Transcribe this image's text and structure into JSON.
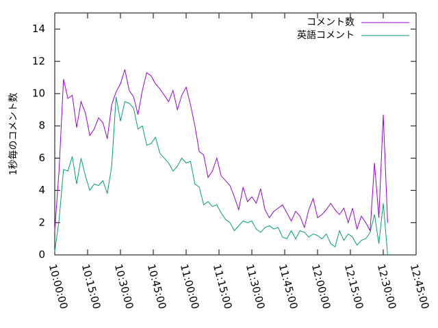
{
  "chart_data": {
    "type": "line",
    "y_label": "1秒毎のコメント数",
    "x": [
      "10:00:00",
      "10:02:00",
      "10:04:00",
      "10:06:00",
      "10:08:00",
      "10:10:00",
      "10:12:00",
      "10:14:00",
      "10:16:00",
      "10:18:00",
      "10:20:00",
      "10:22:00",
      "10:24:00",
      "10:26:00",
      "10:28:00",
      "10:30:00",
      "10:32:00",
      "10:34:00",
      "10:36:00",
      "10:38:00",
      "10:40:00",
      "10:42:00",
      "10:44:00",
      "10:46:00",
      "10:48:00",
      "10:50:00",
      "10:52:00",
      "10:54:00",
      "10:56:00",
      "10:58:00",
      "11:00:00",
      "11:02:00",
      "11:04:00",
      "11:06:00",
      "11:08:00",
      "11:10:00",
      "11:12:00",
      "11:14:00",
      "11:16:00",
      "11:18:00",
      "11:20:00",
      "11:22:00",
      "11:24:00",
      "11:26:00",
      "11:28:00",
      "11:30:00",
      "11:32:00",
      "11:34:00",
      "11:36:00",
      "11:38:00",
      "11:40:00",
      "11:42:00",
      "11:44:00",
      "11:46:00",
      "11:48:00",
      "11:50:00",
      "11:52:00",
      "11:54:00",
      "11:56:00",
      "11:58:00",
      "12:00:00",
      "12:02:00",
      "12:04:00",
      "12:06:00",
      "12:08:00",
      "12:10:00",
      "12:12:00",
      "12:14:00",
      "12:16:00",
      "12:18:00",
      "12:20:00",
      "12:22:00",
      "12:24:00",
      "12:26:00",
      "12:28:00",
      "12:30:00",
      "12:32:00"
    ],
    "series": [
      {
        "name": "コメント数",
        "color": "#9400d3",
        "values": [
          1.5,
          5.3,
          10.9,
          9.7,
          9.9,
          7.9,
          9.5,
          8.8,
          7.4,
          7.8,
          8.5,
          8.2,
          7.2,
          9.3,
          10.1,
          10.6,
          11.5,
          10.2,
          9.8,
          8.7,
          10.2,
          11.3,
          11.1,
          10.6,
          10.3,
          9.9,
          9.5,
          10.2,
          9.0,
          9.9,
          10.4,
          9.3,
          8.0,
          6.4,
          6.2,
          4.8,
          5.2,
          6.0,
          4.9,
          4.6,
          4.3,
          3.6,
          2.8,
          4.2,
          3.3,
          3.6,
          3.2,
          4.1,
          2.8,
          2.3,
          2.7,
          2.9,
          3.1,
          2.6,
          2.1,
          2.7,
          2.4,
          1.7,
          2.8,
          3.5,
          2.3,
          2.5,
          2.8,
          3.2,
          2.8,
          2.5,
          2.9,
          2.0,
          2.9,
          1.6,
          2.4,
          2.0,
          1.5,
          5.7,
          2.3,
          8.7,
          2.0
        ]
      },
      {
        "name": "英語コメント",
        "color": "#009e73",
        "values": [
          0.2,
          2.2,
          5.3,
          5.2,
          6.1,
          4.4,
          6.0,
          4.9,
          4.0,
          4.4,
          4.3,
          4.6,
          3.8,
          5.5,
          9.8,
          8.3,
          9.5,
          9.4,
          9.1,
          7.8,
          8.0,
          6.8,
          6.9,
          7.3,
          6.3,
          6.0,
          5.7,
          5.2,
          5.5,
          6.0,
          5.7,
          5.8,
          4.4,
          4.2,
          3.1,
          3.3,
          3.0,
          3.1,
          2.6,
          2.2,
          2.0,
          1.5,
          1.8,
          2.1,
          2.0,
          2.1,
          1.6,
          1.4,
          1.7,
          1.8,
          1.6,
          1.7,
          1.1,
          1.0,
          1.5,
          1.0,
          1.5,
          1.4,
          1.1,
          1.3,
          1.2,
          1.0,
          1.3,
          0.7,
          0.5,
          1.5,
          0.9,
          1.3,
          1.1,
          0.6,
          0.9,
          1.0,
          1.4,
          2.5,
          0.7,
          3.2,
          0.0
        ]
      }
    ],
    "xlim": [
      "10:00:00",
      "12:45:00"
    ],
    "xticks": [
      "10:00:00",
      "10:15:00",
      "10:30:00",
      "10:45:00",
      "11:00:00",
      "11:15:00",
      "11:30:00",
      "11:45:00",
      "12:00:00",
      "12:15:00",
      "12:30:00",
      "12:45:00"
    ],
    "ylim": [
      0,
      15
    ],
    "yticks": [
      0,
      2,
      4,
      6,
      8,
      10,
      12,
      14
    ],
    "legend": "top-right"
  }
}
